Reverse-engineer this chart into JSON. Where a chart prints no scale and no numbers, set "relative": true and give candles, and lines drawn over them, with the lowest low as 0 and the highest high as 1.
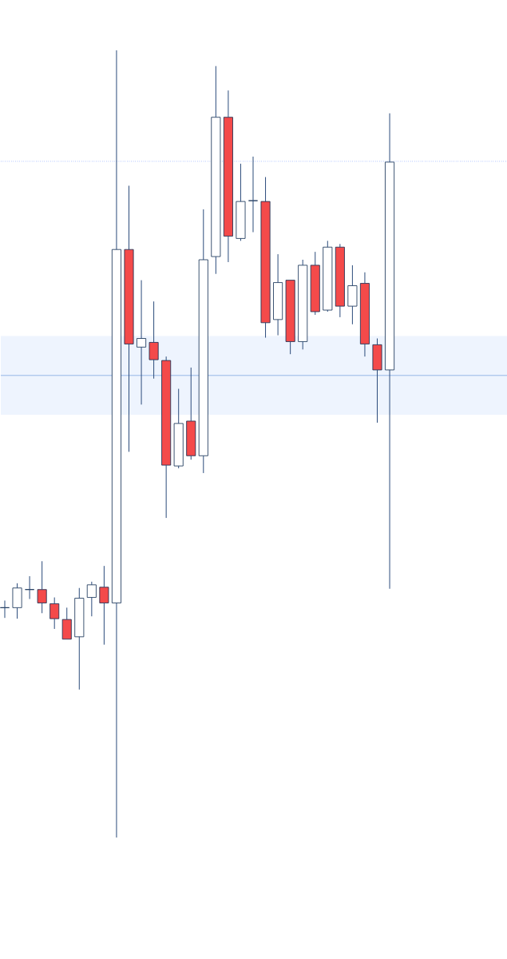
{
  "chart_data": {
    "type": "candlestick",
    "relative": true,
    "categories": [
      null,
      null,
      null,
      null,
      null,
      null,
      null,
      null,
      null,
      null,
      null,
      null,
      null,
      null,
      null,
      null,
      null,
      null,
      null,
      null,
      null,
      null,
      null,
      null,
      null,
      null,
      null,
      null,
      null,
      null,
      null,
      null
    ],
    "ohlc": [
      [
        0.292,
        0.301,
        0.279,
        0.292
      ],
      [
        0.292,
        0.323,
        0.278,
        0.317
      ],
      [
        0.315,
        0.332,
        0.303,
        0.315
      ],
      [
        0.315,
        0.351,
        0.285,
        0.298
      ],
      [
        0.297,
        0.305,
        0.265,
        0.278
      ],
      [
        0.277,
        0.292,
        0.252,
        0.252
      ],
      [
        0.255,
        0.317,
        0.188,
        0.304
      ],
      [
        0.305,
        0.325,
        0.281,
        0.321
      ],
      [
        0.318,
        0.345,
        0.245,
        0.298
      ],
      [
        0.298,
        1,
        0,
        0.747
      ],
      [
        0.747,
        0.828,
        0.49,
        0.627
      ],
      [
        0.623,
        0.708,
        0.55,
        0.634
      ],
      [
        0.629,
        0.681,
        0.583,
        0.607
      ],
      [
        0.606,
        0.611,
        0.406,
        0.473
      ],
      [
        0.472,
        0.57,
        0.469,
        0.526
      ],
      [
        0.529,
        0.597,
        0.48,
        0.485
      ],
      [
        0.485,
        0.798,
        0.463,
        0.734
      ],
      [
        0.738,
        0.98,
        0.716,
        0.915
      ],
      [
        0.915,
        0.949,
        0.731,
        0.764
      ],
      [
        0.761,
        0.856,
        0.758,
        0.808
      ],
      [
        0.809,
        0.865,
        0.769,
        0.809
      ],
      [
        0.808,
        0.839,
        0.635,
        0.654
      ],
      [
        0.658,
        0.741,
        0.638,
        0.705
      ],
      [
        0.708,
        0.708,
        0.614,
        0.63
      ],
      [
        0.63,
        0.734,
        0.62,
        0.727
      ],
      [
        0.727,
        0.744,
        0.664,
        0.668
      ],
      [
        0.67,
        0.758,
        0.668,
        0.75
      ],
      [
        0.75,
        0.754,
        0.661,
        0.675
      ],
      [
        0.675,
        0.727,
        0.652,
        0.701
      ],
      [
        0.704,
        0.718,
        0.611,
        0.627
      ],
      [
        0.626,
        0.634,
        0.527,
        0.594
      ],
      [
        0.594,
        0.92,
        0.316,
        0.858
      ]
    ],
    "ref_lines": [
      {
        "axis": "y",
        "value": 0.859,
        "line_style": "dotted",
        "color": "#2962ff"
      },
      {
        "axis": "y",
        "value": 0.587,
        "color": "#5b8fd6"
      }
    ],
    "bands": [
      {
        "axis": "y",
        "from": 0.537,
        "to": 0.637,
        "color": "#eef4fe"
      }
    ]
  }
}
